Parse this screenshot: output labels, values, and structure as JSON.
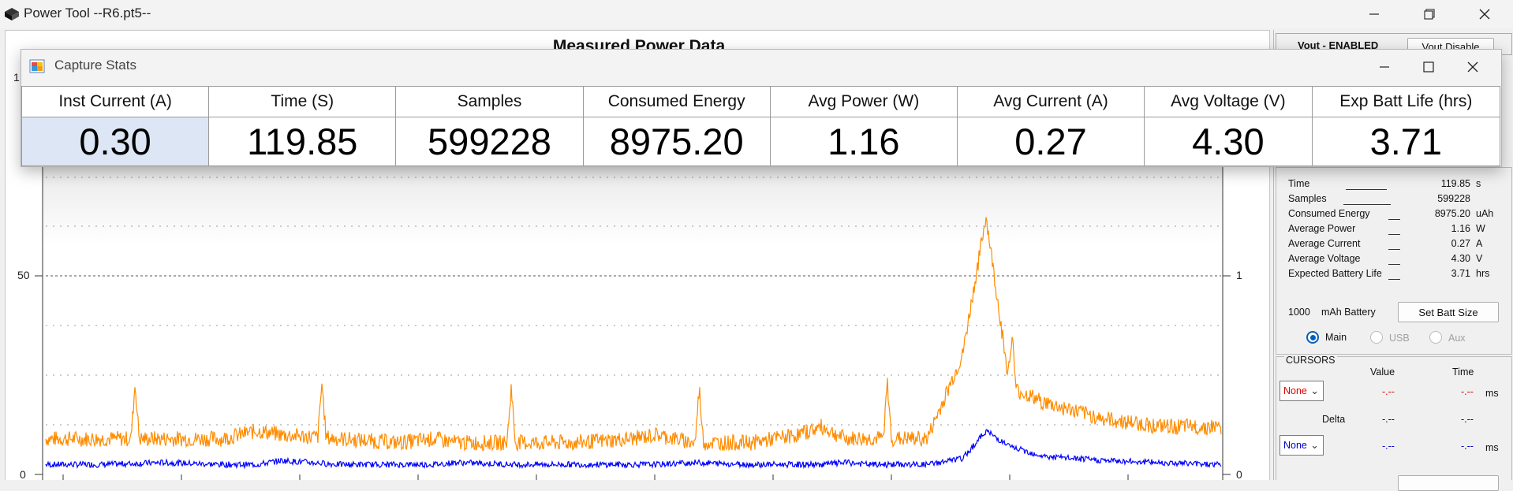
{
  "window": {
    "title": "Power Tool --R6.pt5--",
    "controls": [
      "minimize-icon",
      "restore-icon",
      "close-icon"
    ]
  },
  "chart": {
    "title": "Measured Power Data",
    "left_axis_ticks": [
      "50",
      "0"
    ],
    "left_axis_top_partial": "1",
    "right_axis_ticks": [
      "1",
      "0"
    ]
  },
  "chart_data": {
    "type": "line",
    "title": "Measured Power Data",
    "xlabel": "",
    "ylabel": "",
    "left_ylim": [
      0,
      100
    ],
    "right_ylim": [
      0,
      2
    ],
    "grid": true,
    "x": [
      0,
      5,
      10,
      15,
      18,
      20,
      25,
      30,
      33,
      35,
      40,
      45,
      50,
      52,
      55,
      60,
      64,
      66,
      68,
      70,
      75,
      78,
      80,
      82,
      85,
      90,
      95,
      100
    ],
    "series": [
      {
        "color": "#ff8c00",
        "values": [
          9,
          9,
          9,
          9,
          11,
          10,
          9,
          8,
          9,
          8,
          8,
          8,
          9,
          10,
          8,
          8,
          10,
          12,
          9,
          9,
          9,
          30,
          65,
          22,
          18,
          14,
          12,
          12
        ]
      },
      {
        "color": "#0000ff",
        "values": [
          0.05,
          0.05,
          0.06,
          0.05,
          0.05,
          0.07,
          0.05,
          0.05,
          0.05,
          0.06,
          0.05,
          0.05,
          0.05,
          0.05,
          0.06,
          0.05,
          0.05,
          0.05,
          0.06,
          0.05,
          0.05,
          0.08,
          0.22,
          0.14,
          0.09,
          0.07,
          0.06,
          0.05
        ]
      }
    ]
  },
  "right_panel": {
    "vout_label": "Vout - ENABLED",
    "vout_button": "Vout Disable",
    "stats": [
      {
        "label": "Time",
        "value": "119.85",
        "unit": "s"
      },
      {
        "label": "Samples",
        "value": "599228",
        "unit": ""
      },
      {
        "label": "Consumed Energy",
        "value": "8975.20",
        "unit": "uAh"
      },
      {
        "label": "Average Power",
        "value": "1.16",
        "unit": "W"
      },
      {
        "label": "Average Current",
        "value": "0.27",
        "unit": "A"
      },
      {
        "label": "Average Voltage",
        "value": "4.30",
        "unit": "V"
      },
      {
        "label": "Expected Battery Life",
        "value": "3.71",
        "unit": "hrs"
      }
    ],
    "battery_value": "1000",
    "battery_label": "mAh Battery",
    "set_batt_button": "Set Batt Size",
    "radios": [
      {
        "label": "Main",
        "checked": true
      },
      {
        "label": "USB",
        "checked": false
      },
      {
        "label": "Aux",
        "checked": false
      }
    ],
    "cursors": {
      "title": "CURSORS",
      "value_header": "Value",
      "time_header": "Time",
      "cursor1": {
        "select": "None",
        "value": "-.--",
        "time": "-.--",
        "unit": "ms"
      },
      "delta_label": "Delta",
      "delta_value": "-.--",
      "delta_time": "-.--",
      "cursor2": {
        "select": "None",
        "value": "-.--",
        "time": "-.--",
        "unit": "ms"
      }
    }
  },
  "popup": {
    "title": "Capture Stats",
    "headers": [
      "Inst Current (A)",
      "Time (S)",
      "Samples",
      "Consumed Energy",
      "Avg Power (W)",
      "Avg Current (A)",
      "Avg Voltage (V)",
      "Exp Batt Life (hrs)"
    ],
    "values": [
      "0.30",
      "119.85",
      "599228",
      "8975.20",
      "1.16",
      "0.27",
      "4.30",
      "3.71"
    ]
  },
  "colors": {
    "current_series": "#ff8c00",
    "voltage_series": "#0000ff",
    "cursor_red": "#e00000",
    "cursor_blue": "#0000cc",
    "selected_cell": "#dce6f4"
  }
}
